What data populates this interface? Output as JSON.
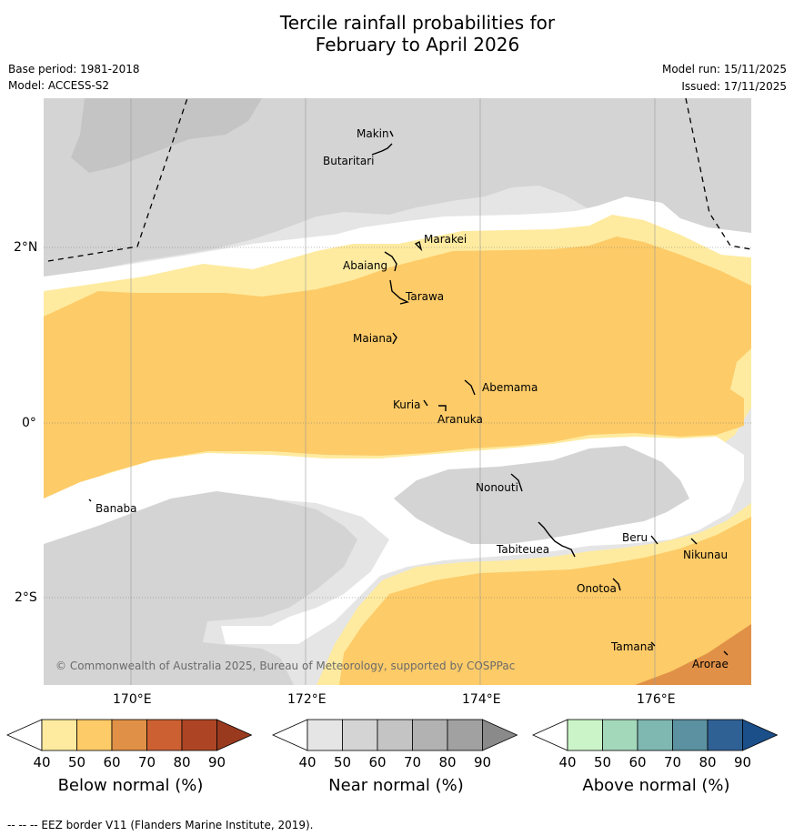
{
  "title": {
    "line1": "Tercile rainfall probabilities for",
    "line2": "February to April 2026"
  },
  "meta": {
    "base_period": "Base period: 1981-2018",
    "model": "Model: ACCESS-S2",
    "model_run": "Model run: 15/11/2025",
    "issued": "Issued: 17/11/2025"
  },
  "axes": {
    "lat_labels": [
      "2°N",
      "0°",
      "2°S"
    ],
    "lon_labels": [
      "170°E",
      "172°E",
      "174°E",
      "176°E"
    ]
  },
  "islands": [
    {
      "name": "Makin"
    },
    {
      "name": "Butaritari"
    },
    {
      "name": "Marakei"
    },
    {
      "name": "Abaiang"
    },
    {
      "name": "Tarawa"
    },
    {
      "name": "Maiana"
    },
    {
      "name": "Abemama"
    },
    {
      "name": "Kuria"
    },
    {
      "name": "Aranuka"
    },
    {
      "name": "Nonouti"
    },
    {
      "name": "Banaba"
    },
    {
      "name": "Tabiteuea"
    },
    {
      "name": "Beru"
    },
    {
      "name": "Nikunau"
    },
    {
      "name": "Onotoa"
    },
    {
      "name": "Tamana"
    },
    {
      "name": "Arorae"
    }
  ],
  "copyright": "© Commonwealth of Australia 2025, Bureau of Meteorology, supported by COSPPac",
  "colorbars": [
    {
      "title": "Below normal (%)",
      "labels": [
        "40",
        "50",
        "60",
        "70",
        "80",
        "90"
      ],
      "colors": [
        "#ffffff",
        "#feeba0",
        "#fdcb68",
        "#e09147",
        "#cc6033",
        "#ad4524",
        "#993a1f"
      ]
    },
    {
      "title": "Near normal (%)",
      "labels": [
        "40",
        "50",
        "60",
        "70",
        "80",
        "90"
      ],
      "colors": [
        "#ffffff",
        "#e5e5e5",
        "#d4d4d4",
        "#c4c4c4",
        "#b2b2b2",
        "#a1a1a1",
        "#8a8a8a"
      ]
    },
    {
      "title": "Above normal (%)",
      "labels": [
        "40",
        "50",
        "60",
        "70",
        "80",
        "90"
      ],
      "colors": [
        "#ffffff",
        "#cbf5c8",
        "#a3d8bb",
        "#7fb7b1",
        "#5b91a0",
        "#306195",
        "#1b4f8a"
      ]
    }
  ],
  "footer": "--  --  -- EEZ border V11 (Flanders Marine Institute, 2019)."
}
